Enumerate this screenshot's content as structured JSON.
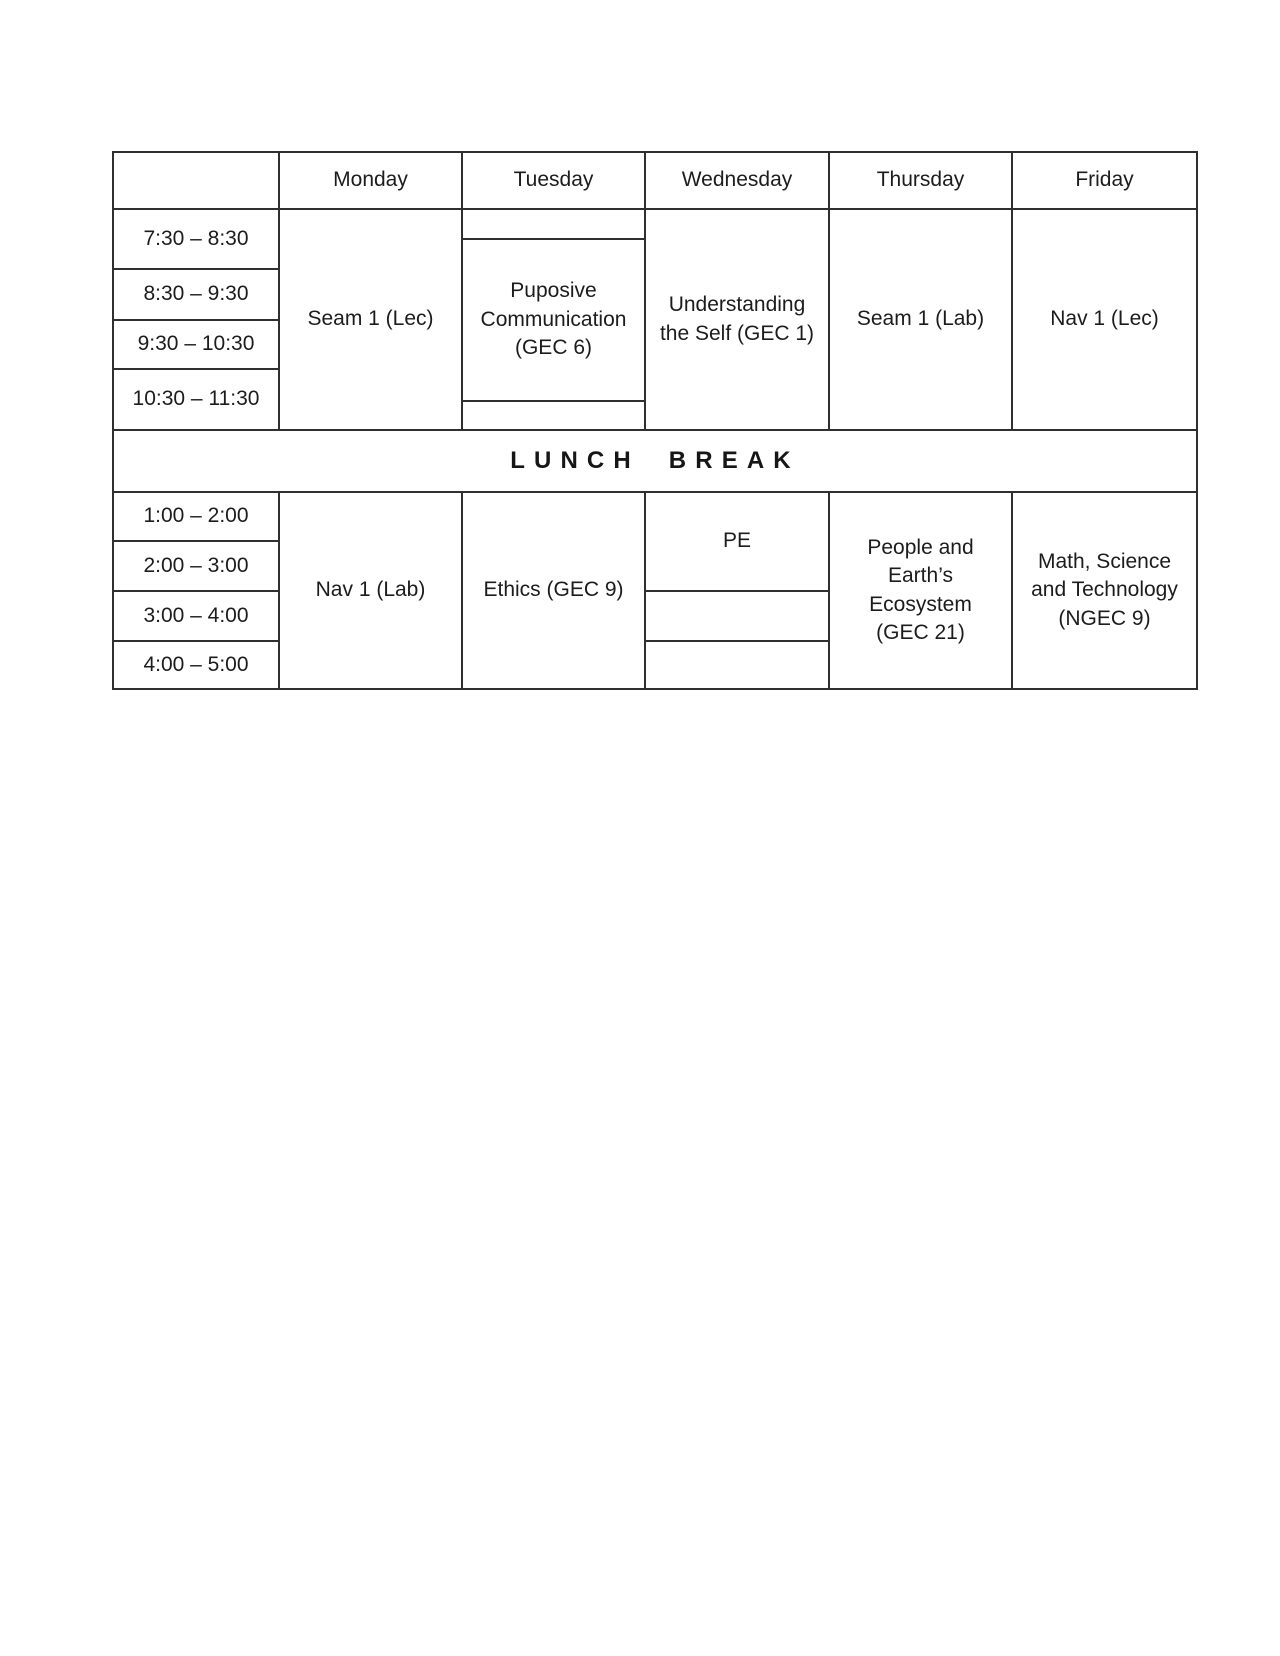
{
  "page": {
    "background": "#ffffff"
  },
  "schedule": {
    "colors": {
      "border": "#2f2f2f",
      "text": "#1c1c1c",
      "background": "#ffffff"
    },
    "days": [
      "Monday",
      "Tuesday",
      "Wednesday",
      "Thursday",
      "Friday"
    ],
    "morning_times": [
      "7:30 – 8:30",
      "8:30 – 9:30",
      "9:30 – 10:30",
      "10:30 – 11:30"
    ],
    "lunch_label": "LUNCH BREAK",
    "afternoon_times": [
      "1:00 – 2:00",
      "2:00 – 3:00",
      "3:00 – 4:00",
      "4:00 – 5:00"
    ],
    "morning": {
      "monday": "Seam 1 (Lec)",
      "tuesday": "Puposive\nCommunication\n(GEC 6)",
      "wednesday": "Understanding\nthe Self (GEC 1)",
      "thursday": "Seam 1 (Lab)",
      "friday": "Nav 1 (Lec)"
    },
    "afternoon": {
      "monday": "Nav 1 (Lab)",
      "tuesday": "Ethics (GEC 9)",
      "wednesday_pe": "PE",
      "thursday": "People and\nEarth’s\nEcosystem\n(GEC 21)",
      "friday": "Math, Science\nand Technology\n(NGEC 9)"
    }
  }
}
